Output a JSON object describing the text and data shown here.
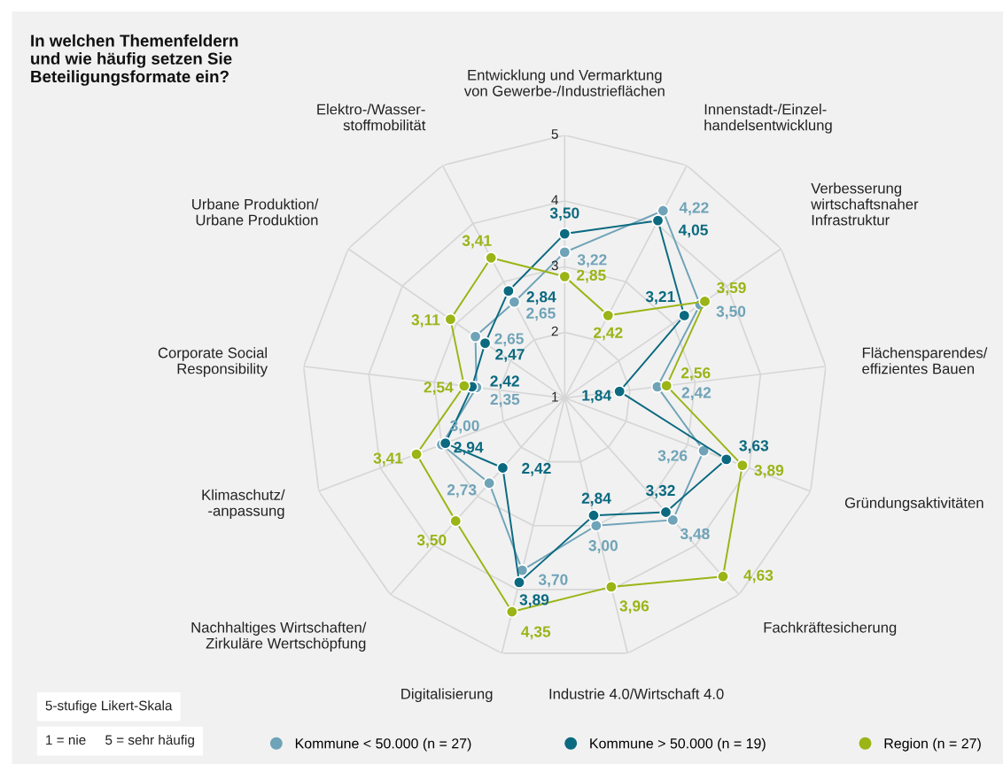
{
  "chart_data": {
    "type": "radar",
    "title": "In welchen Themenfeldern\nund wie häufig setzen Sie\nBeteiligungsformate ein?",
    "categories": [
      "Entwicklung und Vermarktung\nvon Gewerbe-/Industrieflächen",
      "Innenstadt-/Einzel-\nhandelsentwicklung",
      "Verbesserung\nwirtschaftsnaher\nInfrastruktur",
      "Flächensparendes/\neffizientes Bauen",
      "Gründungsaktivitäten",
      "Fachkräftesicherung",
      "Industrie 4.0/Wirtschaft 4.0",
      "Digitalisierung",
      "Nachhaltiges Wirtschaften/\nZirkuläre Wertschöpfung",
      "Klimaschutz/\n-anpassung",
      "Corporate Social\nResponsibility",
      "Urbane Produktion/\nUrbane Produktion",
      "Elektro-/Wasser-\nstoffmobilität"
    ],
    "series": [
      {
        "name": "Kommune < 50.000 (n = 27)",
        "color": "#6fa3b8",
        "values": [
          3.22,
          4.22,
          3.5,
          2.42,
          3.26,
          3.48,
          3.0,
          3.7,
          2.73,
          3.0,
          2.35,
          2.65,
          2.65
        ],
        "value_labels": [
          "3,22",
          "4,22",
          "3,50",
          "2,42",
          "3,26",
          "3,48",
          "3,00",
          "3,70",
          "2,73",
          "3,00",
          "2,35",
          "2,65",
          "2,65"
        ]
      },
      {
        "name": "Kommune > 50.000 (n = 19)",
        "color": "#0b6a80",
        "values": [
          3.5,
          4.05,
          3.21,
          1.84,
          3.63,
          3.32,
          2.84,
          3.89,
          2.42,
          2.94,
          2.42,
          2.47,
          2.84
        ],
        "value_labels": [
          "3,50",
          "4,05",
          "3,21",
          "1,84",
          "3,63",
          "3,32",
          "2,84",
          "3,89",
          "2,42",
          "2,94",
          "2,42",
          "2,47",
          "2,84"
        ]
      },
      {
        "name": "Region (n = 27)",
        "color": "#9bb416",
        "values": [
          2.85,
          2.42,
          3.59,
          2.56,
          3.89,
          4.63,
          3.96,
          4.35,
          3.5,
          3.41,
          2.54,
          3.11,
          3.41
        ],
        "value_labels": [
          "2,85",
          "2,42",
          "3,59",
          "2,56",
          "3,89",
          "4,63",
          "3,96",
          "4,35",
          "3,50",
          "3,41",
          "2,54",
          "3,11",
          "3,41"
        ]
      }
    ],
    "ylim": [
      1,
      5
    ],
    "yticks": [
      1,
      2,
      3,
      4,
      5
    ],
    "marker": "circle",
    "grid": true,
    "legend": "bottom",
    "annotations": [
      "5-stufige Likert-Skala",
      "1 = nie     5 = sehr häufig"
    ]
  }
}
